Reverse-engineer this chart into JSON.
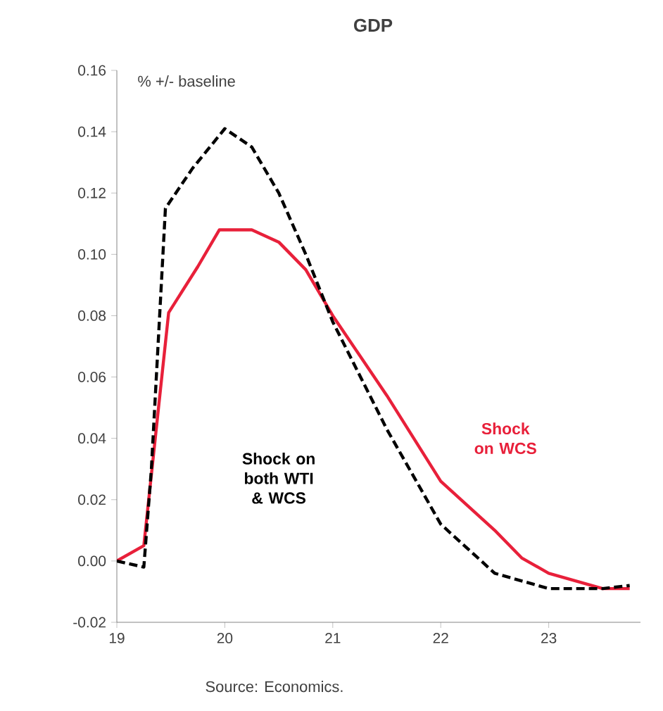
{
  "chart_data": {
    "type": "line",
    "title": "GDP",
    "annotations": [
      "% +/- baseline",
      "Source: Economics."
    ],
    "xlim": [
      19,
      23.85
    ],
    "xticks": [
      19,
      20,
      21,
      22,
      23
    ],
    "ylim": [
      -0.02,
      0.16
    ],
    "yticks": [
      {
        "value": -0.02,
        "label": "-0.02"
      },
      {
        "value": 0,
        "label": "0.00"
      },
      {
        "value": 0.02,
        "label": "0.02"
      },
      {
        "value": 0.04,
        "label": "0.04"
      },
      {
        "value": 0.06,
        "label": "0.06"
      },
      {
        "value": 0.08,
        "label": "0.08"
      },
      {
        "value": 0.1,
        "label": "0.10"
      },
      {
        "value": 0.12,
        "label": "0.12"
      },
      {
        "value": 0.14,
        "label": "0.14"
      },
      {
        "value": 0.16,
        "label": "0.16"
      }
    ],
    "grid": false,
    "legend": false,
    "series": [
      {
        "name": "Shock on WCS",
        "color": "#e8203a",
        "line_style": "solid",
        "x": [
          19,
          19.25,
          19.48,
          19.75,
          19.95,
          20.25,
          20.5,
          20.75,
          21,
          21.5,
          22,
          22.5,
          22.75,
          23,
          23.5,
          23.75
        ],
        "values": [
          0,
          0.005,
          0.081,
          0.096,
          0.108,
          0.108,
          0.104,
          0.095,
          0.08,
          0.054,
          0.026,
          0.01,
          0.001,
          -0.004,
          -0.009,
          -0.009
        ]
      },
      {
        "name": "Shock on both WTI & WCS",
        "color": "#000000",
        "line_style": "dashed",
        "x": [
          19,
          19.25,
          19.32,
          19.45,
          19.7,
          20,
          20.25,
          20.5,
          20.75,
          21,
          21.5,
          22,
          22.5,
          23,
          23.5,
          23.75
        ],
        "values": [
          0,
          -0.002,
          0.03,
          0.115,
          0.128,
          0.141,
          0.135,
          0.12,
          0.1,
          0.078,
          0.043,
          0.012,
          -0.004,
          -0.009,
          -0.009,
          -0.008
        ]
      }
    ]
  }
}
